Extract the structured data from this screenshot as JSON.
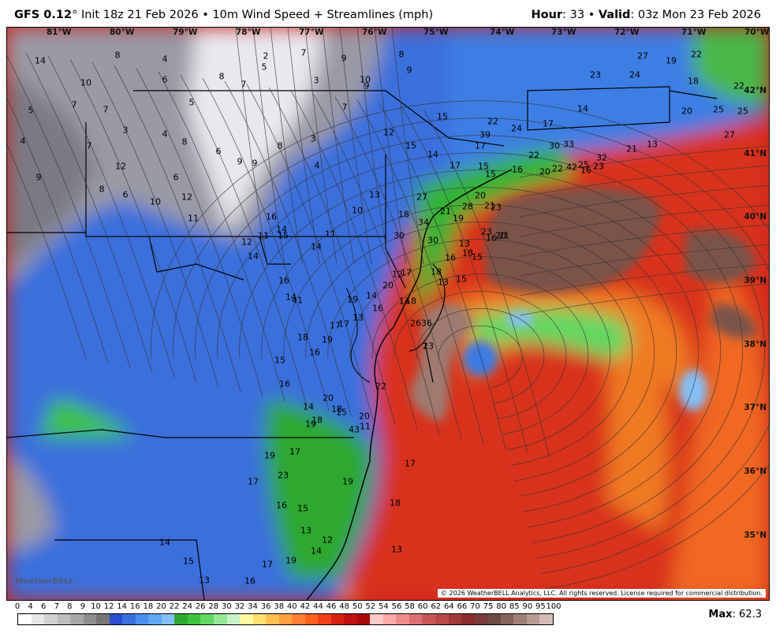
{
  "header": {
    "model": "GFS 0.12",
    "degree": "°",
    "init": "Init 18z 21 Feb 2026",
    "sep": "•",
    "field": "10m Wind Speed + Streamlines (mph)",
    "hour_label": "Hour",
    "hour_value": ": 33",
    "valid_label": "Valid",
    "valid_value": ": 03z Mon 23 Feb 2026"
  },
  "map": {
    "lon_labels": [
      "81°W",
      "80°W",
      "79°W",
      "78°W",
      "77°W",
      "76°W",
      "75°W",
      "74°W",
      "73°W",
      "72°W",
      "71°W",
      "70°W"
    ],
    "lat_labels": [
      "42°N",
      "41°N",
      "40°N",
      "39°N",
      "38°N",
      "37°N",
      "36°N",
      "35°N"
    ],
    "copyright": "© 2026 WeatherBELL Analytics, LLC. All rights reserved. License required for commercial distribution.",
    "watermark": "WeatherBELL",
    "wind_values": [
      "14",
      "8",
      "4",
      "6",
      "8",
      "7",
      "5",
      "2",
      "3",
      "7",
      "9",
      "10",
      "9",
      "8",
      "9",
      "10",
      "5",
      "7",
      "7",
      "3",
      "4",
      "8",
      "6",
      "9",
      "9",
      "8",
      "3",
      "4",
      "7",
      "5",
      "4",
      "9",
      "7",
      "8",
      "12",
      "6",
      "6",
      "12",
      "11",
      "10",
      "12",
      "11",
      "15",
      "14",
      "11",
      "14",
      "14",
      "16",
      "14",
      "16",
      "10",
      "13",
      "12",
      "15",
      "15",
      "14",
      "17",
      "15",
      "17",
      "22",
      "24",
      "22",
      "30",
      "33",
      "42",
      "16",
      "32",
      "21",
      "13",
      "17",
      "14",
      "23",
      "24",
      "27",
      "19",
      "22",
      "18",
      "20",
      "25",
      "22",
      "25",
      "27",
      "39",
      "15",
      "16",
      "20",
      "22",
      "25",
      "23",
      "13",
      "15",
      "16",
      "19",
      "21",
      "27",
      "34",
      "30",
      "18",
      "30",
      "12",
      "17",
      "20",
      "14",
      "19",
      "16",
      "13",
      "17",
      "14",
      "18",
      "26",
      "36",
      "23",
      "13",
      "18",
      "16",
      "15",
      "18",
      "23",
      "28",
      "20",
      "21",
      "23",
      "20",
      "21",
      "41",
      "18",
      "17",
      "19",
      "16",
      "15",
      "16",
      "18",
      "20",
      "22",
      "20",
      "43",
      "14",
      "18",
      "17",
      "19",
      "23",
      "17",
      "16",
      "15",
      "13",
      "12",
      "14",
      "19",
      "18",
      "17",
      "13",
      "11",
      "15",
      "19",
      "19",
      "17",
      "16",
      "13",
      "15",
      "14"
    ],
    "legend_title": "10m Wind Speed (mph)"
  },
  "legend": {
    "ticks": [
      "0",
      "4",
      "6",
      "7",
      "8",
      "9",
      "10",
      "12",
      "14",
      "16",
      "18",
      "20",
      "22",
      "24",
      "26",
      "28",
      "30",
      "32",
      "34",
      "36",
      "38",
      "40",
      "42",
      "44",
      "46",
      "48",
      "50",
      "52",
      "54",
      "56",
      "58",
      "60",
      "62",
      "64",
      "66",
      "70",
      "75",
      "80",
      "85",
      "90",
      "95",
      "100"
    ],
    "colors": [
      "#ffffff",
      "#e6e6e6",
      "#d2d2d2",
      "#bebebe",
      "#a8a8a8",
      "#8e8e8e",
      "#767676",
      "#2a4ecf",
      "#3a6fe0",
      "#4a8eee",
      "#62a8f2",
      "#84c0f6",
      "#2ea82e",
      "#3cc23c",
      "#62d862",
      "#96e896",
      "#c8f4c8",
      "#fffaa0",
      "#ffe070",
      "#ffc050",
      "#ffa040",
      "#ff8030",
      "#ff6020",
      "#f04018",
      "#d82010",
      "#c01010",
      "#a80a0a",
      "#ffc8c8",
      "#ffaaaa",
      "#f08c8c",
      "#dc7070",
      "#c85858",
      "#b84848",
      "#a03838",
      "#8c2c2c",
      "#7a3a3a",
      "#6e4a44",
      "#85645c",
      "#9e8078",
      "#b89c94",
      "#d4bcb4"
    ],
    "max_label": "Max",
    "max_value": ": 62.3"
  }
}
